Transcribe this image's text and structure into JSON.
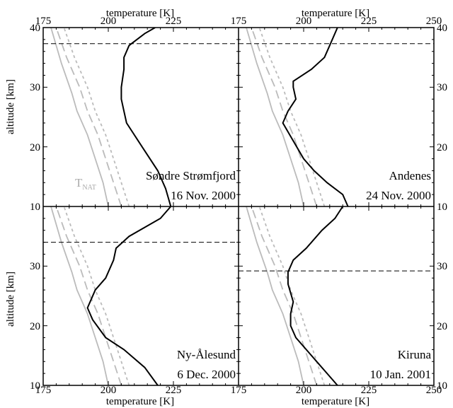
{
  "chart_data": {
    "type": "line",
    "title": "",
    "xlabel_top": "temperature [K]",
    "xlabel_bottom": "temperature [K]",
    "ylabel": "altitude [km]",
    "xlim": [
      175,
      250
    ],
    "ylim": [
      10,
      40
    ],
    "xticks_left": [
      175,
      200,
      225
    ],
    "xticks_right": [
      175,
      200,
      225,
      250
    ],
    "yticks": [
      10,
      20,
      30,
      40
    ],
    "tnat_label": "T",
    "tnat_sub": "NAT",
    "colors": {
      "measured": "#000000",
      "thresholds": "#bbbbbb",
      "dashed_level": "#000000"
    },
    "panels": [
      {
        "id": "sondre",
        "position": "top-left",
        "label_line1": "Søndre Strømfjord",
        "label_line2": "16 Nov. 2000",
        "show_tnat": true,
        "horizontal_line_altitude": 37.3,
        "measured": [
          [
            224,
            10
          ],
          [
            222,
            13
          ],
          [
            219,
            16
          ],
          [
            213,
            20
          ],
          [
            207,
            24
          ],
          [
            206,
            26
          ],
          [
            205,
            28
          ],
          [
            205,
            30
          ],
          [
            206,
            33
          ],
          [
            206,
            35
          ],
          [
            208,
            37
          ],
          [
            214,
            39
          ],
          [
            218,
            40
          ]
        ],
        "tnat": [
          [
            200,
            10
          ],
          [
            198,
            14
          ],
          [
            195,
            18
          ],
          [
            192,
            22
          ],
          [
            188,
            26
          ],
          [
            186,
            29
          ],
          [
            182,
            34
          ],
          [
            178,
            40
          ]
        ],
        "tice_dash": [
          [
            205,
            10
          ],
          [
            202,
            14
          ],
          [
            199,
            18
          ],
          [
            196,
            22
          ],
          [
            192,
            26
          ],
          [
            189,
            30
          ],
          [
            184,
            35
          ],
          [
            180,
            40
          ]
        ],
        "tsts_dot": [
          [
            208,
            10
          ],
          [
            205,
            14
          ],
          [
            202,
            18
          ],
          [
            199,
            22
          ],
          [
            195,
            26
          ],
          [
            192,
            30
          ],
          [
            187,
            35
          ],
          [
            183,
            40
          ]
        ]
      },
      {
        "id": "andenes",
        "position": "top-right",
        "label_line1": "Andenes",
        "label_line2": "24 Nov. 2000",
        "show_tnat": false,
        "horizontal_line_altitude": 37.3,
        "measured": [
          [
            217,
            10
          ],
          [
            215,
            12
          ],
          [
            209,
            14
          ],
          [
            204,
            16
          ],
          [
            200,
            18
          ],
          [
            196,
            21
          ],
          [
            192,
            24
          ],
          [
            194,
            26
          ],
          [
            197,
            28
          ],
          [
            196,
            30
          ],
          [
            196,
            31
          ],
          [
            203,
            33
          ],
          [
            208,
            35
          ],
          [
            210,
            37
          ],
          [
            213,
            40
          ]
        ],
        "tnat": [
          [
            200,
            10
          ],
          [
            198,
            14
          ],
          [
            195,
            18
          ],
          [
            192,
            22
          ],
          [
            188,
            26
          ],
          [
            186,
            29
          ],
          [
            182,
            34
          ],
          [
            178,
            40
          ]
        ],
        "tice_dash": [
          [
            205,
            10
          ],
          [
            202,
            14
          ],
          [
            199,
            18
          ],
          [
            196,
            22
          ],
          [
            192,
            26
          ],
          [
            189,
            30
          ],
          [
            184,
            35
          ],
          [
            180,
            40
          ]
        ],
        "tsts_dot": [
          [
            208,
            10
          ],
          [
            205,
            14
          ],
          [
            202,
            18
          ],
          [
            199,
            22
          ],
          [
            195,
            26
          ],
          [
            192,
            30
          ],
          [
            187,
            35
          ],
          [
            183,
            40
          ]
        ]
      },
      {
        "id": "nyalesund",
        "position": "bottom-left",
        "label_line1": "Ny-Ålesund",
        "label_line2": "6 Dec. 2000",
        "show_tnat": false,
        "horizontal_line_altitude": 34.0,
        "measured": [
          [
            219,
            10
          ],
          [
            214,
            13
          ],
          [
            206,
            16
          ],
          [
            199,
            18
          ],
          [
            194,
            21
          ],
          [
            192,
            23
          ],
          [
            195,
            26
          ],
          [
            199,
            28
          ],
          [
            202,
            31
          ],
          [
            203,
            33
          ],
          [
            208,
            35
          ],
          [
            220,
            38
          ],
          [
            224,
            40
          ]
        ],
        "tnat": [
          [
            200,
            10
          ],
          [
            198,
            14
          ],
          [
            195,
            18
          ],
          [
            192,
            22
          ],
          [
            188,
            26
          ],
          [
            186,
            29
          ],
          [
            182,
            34
          ],
          [
            178,
            40
          ]
        ],
        "tice_dash": [
          [
            205,
            10
          ],
          [
            202,
            14
          ],
          [
            199,
            18
          ],
          [
            196,
            22
          ],
          [
            192,
            26
          ],
          [
            189,
            30
          ],
          [
            184,
            35
          ],
          [
            180,
            40
          ]
        ],
        "tsts_dot": [
          [
            208,
            10
          ],
          [
            205,
            14
          ],
          [
            202,
            18
          ],
          [
            199,
            22
          ],
          [
            195,
            26
          ],
          [
            192,
            30
          ],
          [
            187,
            35
          ],
          [
            183,
            40
          ]
        ]
      },
      {
        "id": "kiruna",
        "position": "bottom-right",
        "label_line1": "Kiruna",
        "label_line2": "10 Jan. 2001",
        "show_tnat": false,
        "horizontal_line_altitude": 29.2,
        "measured": [
          [
            213,
            10
          ],
          [
            209,
            12
          ],
          [
            205,
            14
          ],
          [
            201,
            16
          ],
          [
            197,
            18
          ],
          [
            195,
            20
          ],
          [
            195,
            22
          ],
          [
            196,
            24
          ],
          [
            194,
            27
          ],
          [
            194,
            29
          ],
          [
            196,
            31
          ],
          [
            201,
            33
          ],
          [
            207,
            36
          ],
          [
            212,
            38
          ],
          [
            215,
            40
          ]
        ],
        "tnat": [
          [
            200,
            10
          ],
          [
            198,
            14
          ],
          [
            195,
            18
          ],
          [
            192,
            22
          ],
          [
            188,
            26
          ],
          [
            186,
            29
          ],
          [
            182,
            34
          ],
          [
            178,
            40
          ]
        ],
        "tice_dash": [
          [
            205,
            10
          ],
          [
            202,
            14
          ],
          [
            199,
            18
          ],
          [
            196,
            22
          ],
          [
            192,
            26
          ],
          [
            189,
            30
          ],
          [
            184,
            35
          ],
          [
            180,
            40
          ]
        ],
        "tsts_dot": [
          [
            208,
            10
          ],
          [
            205,
            14
          ],
          [
            202,
            18
          ],
          [
            199,
            22
          ],
          [
            195,
            26
          ],
          [
            192,
            30
          ],
          [
            187,
            35
          ],
          [
            183,
            40
          ]
        ]
      }
    ]
  }
}
